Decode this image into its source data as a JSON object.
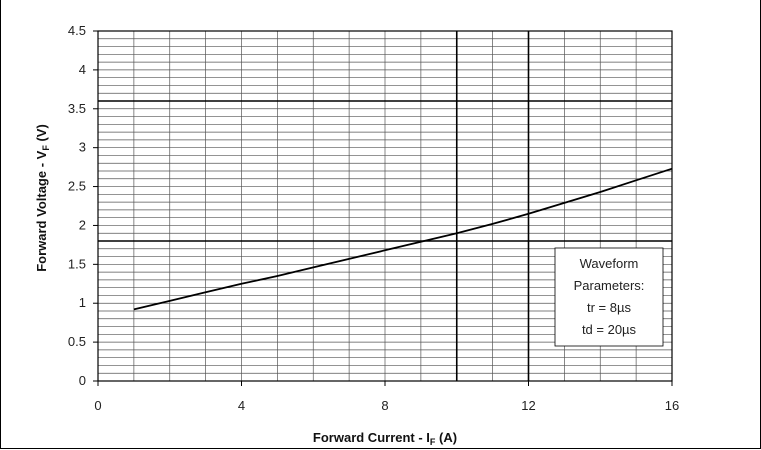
{
  "chart_data": {
    "type": "line",
    "xlabel": "Forward Current - I",
    "xlabel_sub": "F",
    "xlabel_unit": " (A)",
    "ylabel": "Forward Voltage - V",
    "ylabel_sub": "F",
    "ylabel_unit": " (V)",
    "xlim": [
      0,
      16
    ],
    "ylim": [
      0,
      4.5
    ],
    "x_ticks": [
      0,
      4,
      8,
      12,
      16
    ],
    "x_tick_labels": [
      "0",
      "4",
      "8",
      "12",
      "16"
    ],
    "y_ticks": [
      0,
      0.5,
      1,
      1.5,
      2,
      2.5,
      3,
      3.5,
      4,
      4.5
    ],
    "y_tick_labels": [
      "0",
      "0.5",
      "1",
      "1.5",
      "2",
      "2.5",
      "3",
      "3.5",
      "4",
      "4.5"
    ],
    "grid": true,
    "x_minor_step": 1,
    "y_minor_step": 0.1,
    "bold_vertical_lines": [
      10,
      12
    ],
    "bold_horizontal_lines": [
      1.8,
      3.6
    ],
    "series": [
      {
        "x": [
          1,
          2,
          3,
          4,
          5,
          6,
          7,
          8,
          9,
          10,
          11,
          12,
          13,
          14,
          15,
          16
        ],
        "y": [
          0.92,
          1.03,
          1.14,
          1.25,
          1.35,
          1.46,
          1.57,
          1.68,
          1.79,
          1.9,
          2.02,
          2.15,
          2.29,
          2.43,
          2.58,
          2.73
        ]
      }
    ],
    "legend_box": {
      "lines": [
        "Waveform",
        "Parameters:",
        "tr = 8µs",
        "td = 20µs"
      ],
      "placement": "bottom-right"
    }
  }
}
